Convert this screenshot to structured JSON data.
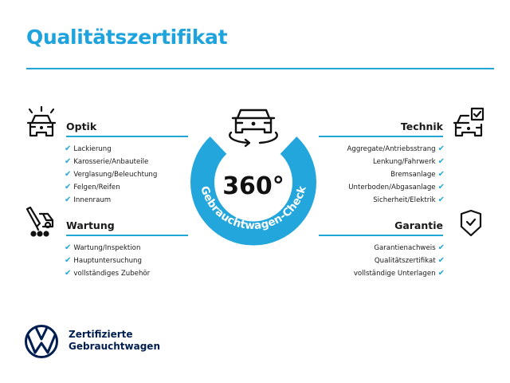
{
  "title": "Qualitätszertifikat",
  "badge": {
    "value": "360°",
    "ring_text": "Gebrauchtwagen-Check"
  },
  "sections": {
    "optik": {
      "heading": "Optik",
      "icon": "car-lights-icon",
      "items": [
        "Lackierung",
        "Karosserie/Anbauteile",
        "Verglasung/Beleuchtung",
        "Felgen/Reifen",
        "Innenraum"
      ]
    },
    "wartung": {
      "heading": "Wartung",
      "icon": "service-tools-icon",
      "items": [
        "Wartung/Inspektion",
        "Hauptuntersuchung",
        "vollständiges Zubehör"
      ]
    },
    "technik": {
      "heading": "Technik",
      "icon": "car-checklist-icon",
      "items": [
        "Aggregate/Antriebsstrang",
        "Lenkung/Fahrwerk",
        "Bremsanlage",
        "Unterboden/Abgasanlage",
        "Sicherheit/Elektrik"
      ]
    },
    "garantie": {
      "heading": "Garantie",
      "icon": "shield-check-icon",
      "items": [
        "Garantienachweis",
        "Qualitätszertifikat",
        "vollständige Unterlagen"
      ]
    }
  },
  "check_glyph": "✔",
  "brand": {
    "line1": "Zertifizierte",
    "line2": "Gebrauchtwagen",
    "logo": "vw-logo"
  },
  "colors": {
    "accent": "#1ea3dc",
    "brand_navy": "#001e50",
    "text": "#1a1a1a"
  }
}
